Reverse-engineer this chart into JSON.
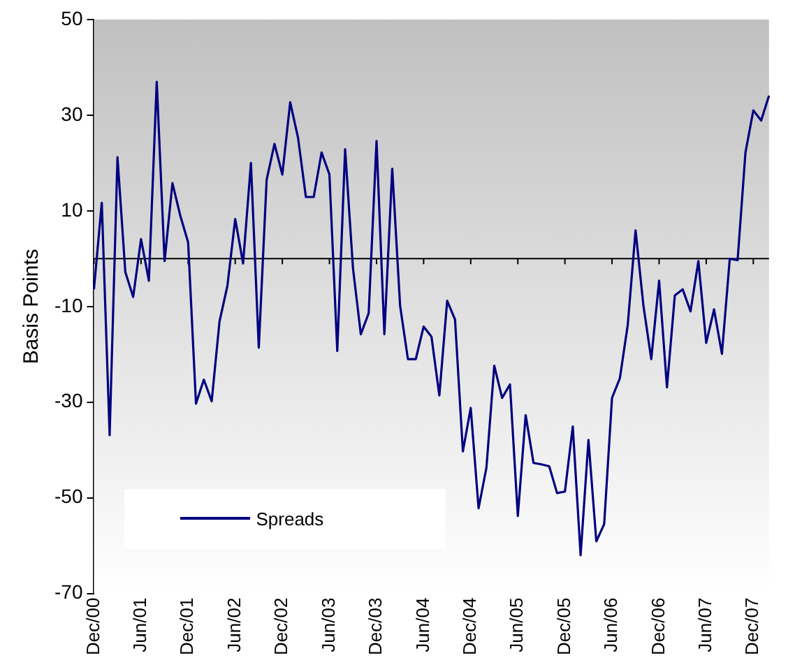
{
  "chart_data": {
    "type": "line",
    "ylabel": "Basis Points",
    "categories": [
      "Dec/00",
      null,
      null,
      null,
      null,
      null,
      "Jun/01",
      null,
      null,
      null,
      null,
      null,
      "Dec/01",
      null,
      null,
      null,
      null,
      null,
      "Jun/02",
      null,
      null,
      null,
      null,
      null,
      "Dec/02",
      null,
      null,
      null,
      null,
      null,
      "Jun/03",
      null,
      null,
      null,
      null,
      null,
      "Dec/03",
      null,
      null,
      null,
      null,
      null,
      "Jun/04",
      null,
      null,
      null,
      null,
      null,
      "Dec/04",
      null,
      null,
      null,
      null,
      null,
      "Jun/05",
      null,
      null,
      null,
      null,
      null,
      "Dec/05",
      null,
      null,
      null,
      null,
      null,
      "Jun/06",
      null,
      null,
      null,
      null,
      null,
      "Dec/06",
      null,
      null,
      null,
      null,
      null,
      "Jun/07",
      null,
      null,
      null,
      null,
      null,
      "Dec/07",
      null,
      null
    ],
    "series": [
      {
        "name": "Spreads",
        "color": "#000080",
        "values": [
          -6.4,
          11.7,
          -36.9,
          21.2,
          -2.8,
          -8,
          4.1,
          -4.6,
          37,
          -0.5,
          15.8,
          9,
          3.4,
          -30.3,
          -25.3,
          -29.8,
          -13.1,
          -5.7,
          8.3,
          -1,
          20,
          -18.6,
          16.5,
          24,
          17.6,
          32.7,
          25.3,
          12.9,
          12.9,
          22.2,
          17.6,
          -19.3,
          22.9,
          -2,
          -15.8,
          -11.4,
          24.6,
          -15.8,
          18.8,
          -9.8,
          -21,
          -21,
          -14.2,
          -16.3,
          -28.6,
          -8.8,
          -12.7,
          -40.3,
          -31.2,
          -52.2,
          -43.7,
          -22.4,
          -29.1,
          -26.3,
          -53.8,
          -32.7,
          -42.7,
          -43,
          -43.4,
          -49,
          -48.7,
          -35.1,
          -62,
          -37.9,
          -59.1,
          -55.5,
          -29.1,
          -25,
          -13.9,
          5.9,
          -9.8,
          -21,
          -4.6,
          -26.9,
          -7.7,
          -6.4,
          -11,
          -0.5,
          -17.6,
          -10.6,
          -19.9,
          0,
          -0.3,
          22.2,
          31,
          28.9,
          34.1
        ]
      }
    ],
    "ylim": [
      -70,
      50
    ],
    "yticks": [
      -70,
      -50,
      -30,
      -10,
      10,
      30,
      50
    ],
    "ref_lines": [
      {
        "axis": "y",
        "value": 0,
        "color": "#000000"
      }
    ],
    "grid": false,
    "legend": "bottom left",
    "marker": "none",
    "line_style": "solid"
  }
}
